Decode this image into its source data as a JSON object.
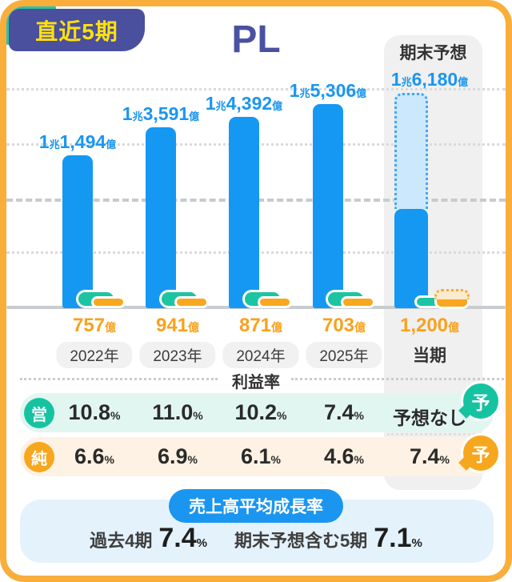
{
  "colors": {
    "frame_orange": "#F9AE3C",
    "bar_blue": "#1598F2",
    "forecast_bar_fill": "#CBE8FC",
    "green": "#1CC4A2",
    "orange": "#F8A71F",
    "indigo": "#4A4F9E",
    "badge_yellow": "#FFE10A",
    "mint_row": "#E2F6F1",
    "cream_row": "#FDF2E3",
    "grey_column": "#F0F0F0",
    "bottom_box": "#E4F2FC"
  },
  "header": {
    "badge": "直近5期",
    "title": "PL",
    "forecast_header": "期末予想"
  },
  "chart_data": {
    "type": "bar",
    "unit": "億円",
    "categories": [
      "2022年",
      "2023年",
      "2024年",
      "2025年",
      "当期"
    ],
    "category_is_pill": [
      true,
      true,
      true,
      true,
      false
    ],
    "revenue": {
      "name": "売上高",
      "values": [
        11494,
        13591,
        14392,
        15306,
        16180
      ],
      "labels": [
        "1兆1,494億",
        "1兆3,591億",
        "1兆4,392億",
        "1兆5,306億",
        "1兆6,180億"
      ],
      "forecast_index": 4,
      "forecast_achieved_ratio": 0.46
    },
    "operating_profit": {
      "name": "営業利益",
      "values_labeled": false
    },
    "net_profit": {
      "name": "純利益",
      "values": [
        757,
        941,
        871,
        703,
        1200
      ],
      "labels": [
        "757億",
        "941億",
        "871億",
        "703億",
        "1,200億"
      ],
      "forecast_index": 4
    },
    "ylim": [
      0,
      16500
    ],
    "gridlines": "dotted-horizontal"
  },
  "profit_table": {
    "title": "利益率",
    "rows": [
      {
        "id": "operating",
        "badge": "営",
        "values": [
          "10.8",
          "11.0",
          "10.2",
          "7.4"
        ],
        "unit": "%",
        "forecast": "予想なし",
        "forecast_has_unit": false,
        "bubble": "予"
      },
      {
        "id": "net",
        "badge": "純",
        "values": [
          "6.6",
          "6.9",
          "6.1",
          "4.6"
        ],
        "unit": "%",
        "forecast": "7.4",
        "forecast_has_unit": true,
        "bubble": "予"
      }
    ]
  },
  "growth": {
    "title": "売上高平均成長率",
    "items": [
      {
        "label": "過去4期",
        "value": "7.4",
        "unit": "%"
      },
      {
        "label": "期末予想含む5期",
        "value": "7.1",
        "unit": "%"
      }
    ]
  }
}
